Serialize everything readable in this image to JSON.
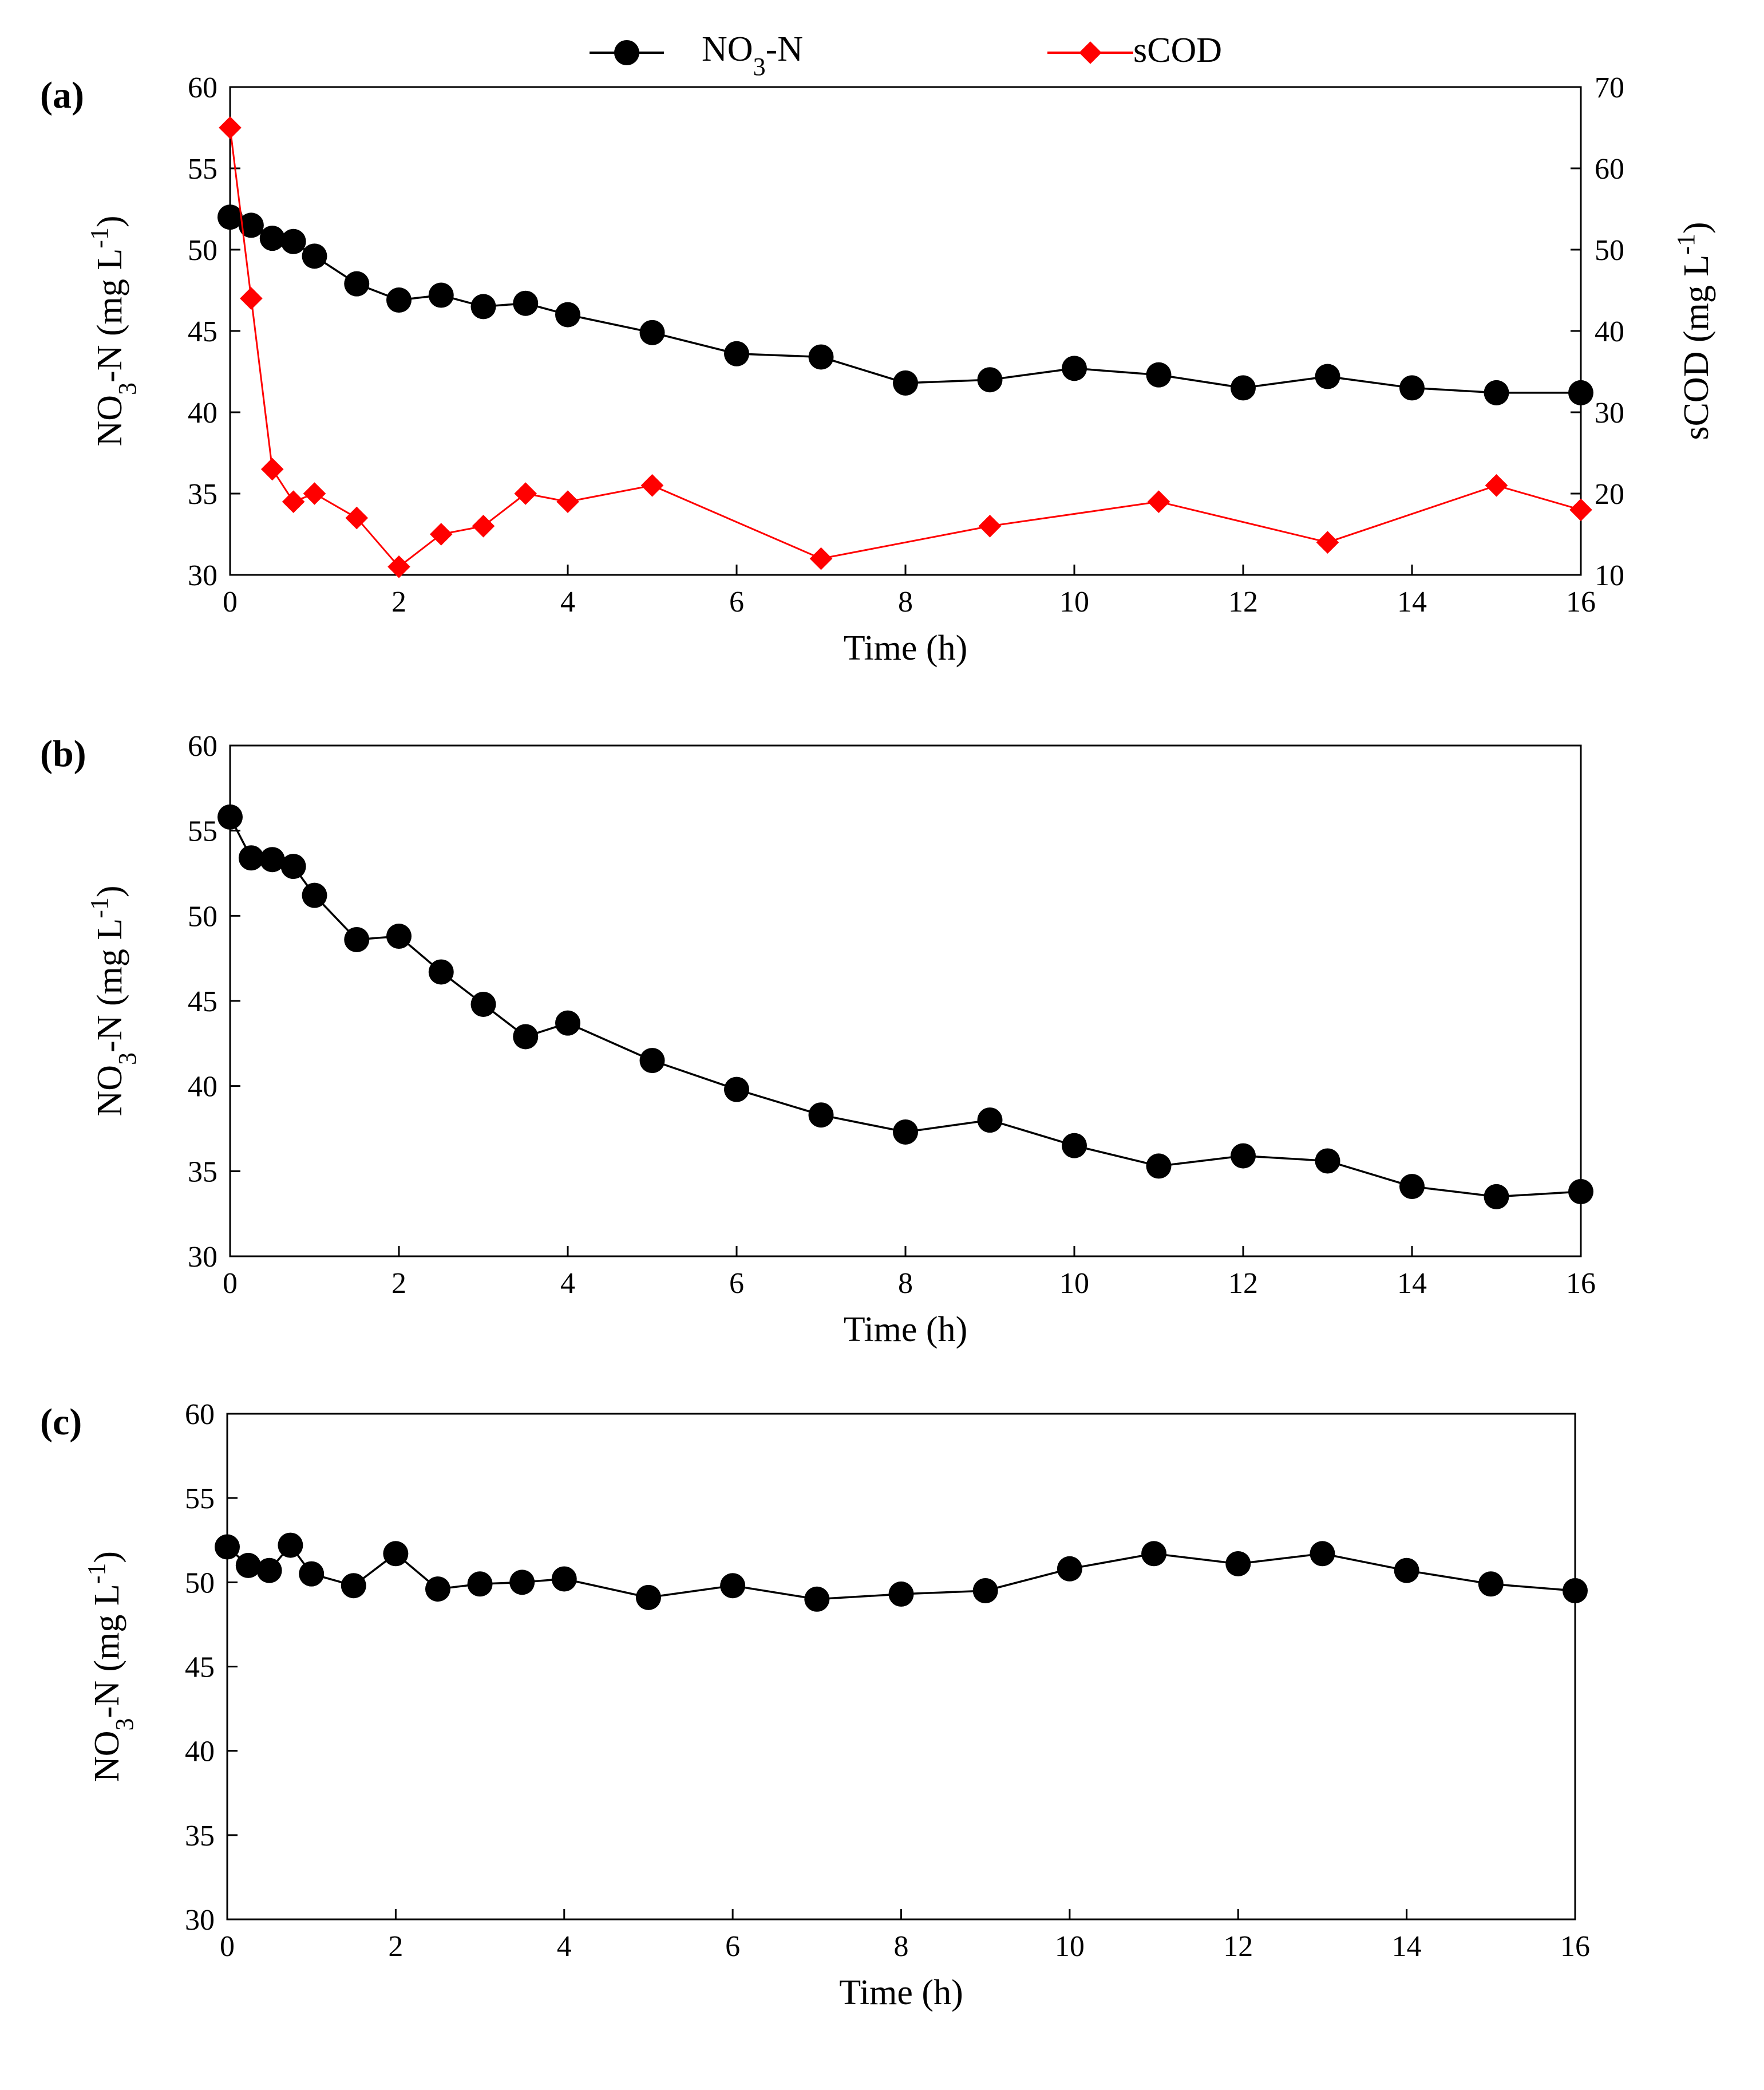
{
  "legend": {
    "series1_label": "NO3-N",
    "series2_label": "sCOD"
  },
  "colors": {
    "series1": "#000000",
    "series2": "#ff0000",
    "axis": "#000000"
  },
  "chart_data": [
    {
      "type": "line",
      "panel_label": "(a)",
      "xlabel": "Time (h)",
      "ylabel": "NO3-N (mg L-1)",
      "y2label": "sCOD (mg L-1)",
      "xlim": [
        0,
        16
      ],
      "ylim": [
        30,
        60
      ],
      "y2lim": [
        10,
        70
      ],
      "xticks": [
        0,
        2,
        4,
        6,
        8,
        10,
        12,
        14,
        16
      ],
      "yticks": [
        30,
        35,
        40,
        45,
        50,
        55,
        60
      ],
      "y2ticks": [
        10,
        20,
        30,
        40,
        50,
        60,
        70
      ],
      "grid": false,
      "series": [
        {
          "name": "NO3-N",
          "axis": "left",
          "marker": "circle",
          "x": [
            0,
            0.25,
            0.5,
            0.75,
            1,
            1.5,
            2,
            2.5,
            3,
            3.5,
            4,
            5,
            6,
            7,
            8,
            9,
            10,
            11,
            12,
            13,
            14,
            15,
            16
          ],
          "y": [
            52.0,
            51.5,
            50.7,
            50.5,
            49.6,
            47.9,
            46.9,
            47.2,
            46.5,
            46.7,
            46.0,
            44.9,
            43.6,
            43.4,
            41.8,
            42.0,
            42.7,
            42.3,
            41.5,
            42.2,
            41.5,
            41.2,
            41.2
          ]
        },
        {
          "name": "sCOD",
          "axis": "right",
          "marker": "diamond",
          "x": [
            0,
            0.25,
            0.5,
            0.75,
            1,
            1.5,
            2,
            2.5,
            3,
            3.5,
            4,
            5,
            7,
            9,
            11,
            13,
            15,
            16
          ],
          "y": [
            65,
            44,
            23,
            19,
            20,
            17,
            11,
            15,
            16,
            20,
            19,
            21,
            12,
            16,
            19,
            14,
            21,
            18
          ]
        }
      ]
    },
    {
      "type": "line",
      "panel_label": "(b)",
      "xlabel": "Time (h)",
      "ylabel": "NO3-N (mg L-1)",
      "xlim": [
        0,
        16
      ],
      "ylim": [
        30,
        60
      ],
      "xticks": [
        0,
        2,
        4,
        6,
        8,
        10,
        12,
        14,
        16
      ],
      "yticks": [
        30,
        35,
        40,
        45,
        50,
        55,
        60
      ],
      "grid": false,
      "series": [
        {
          "name": "NO3-N",
          "axis": "left",
          "marker": "circle",
          "x": [
            0,
            0.25,
            0.5,
            0.75,
            1,
            1.5,
            2,
            2.5,
            3,
            3.5,
            4,
            5,
            6,
            7,
            8,
            9,
            10,
            11,
            12,
            13,
            14,
            15,
            16
          ],
          "y": [
            55.8,
            53.4,
            53.3,
            52.9,
            51.2,
            48.6,
            48.8,
            46.7,
            44.8,
            42.9,
            43.7,
            41.5,
            39.8,
            38.3,
            37.3,
            38.0,
            36.5,
            35.3,
            35.9,
            35.6,
            34.1,
            33.5,
            33.8
          ]
        }
      ]
    },
    {
      "type": "line",
      "panel_label": "(c)",
      "xlabel": "Time (h)",
      "ylabel": "NO3-N (mg L-1)",
      "xlim": [
        0,
        16
      ],
      "ylim": [
        30,
        60
      ],
      "xticks": [
        0,
        2,
        4,
        6,
        8,
        10,
        12,
        14,
        16
      ],
      "yticks": [
        30,
        35,
        40,
        45,
        50,
        55,
        60
      ],
      "grid": false,
      "series": [
        {
          "name": "NO3-N",
          "axis": "left",
          "marker": "circle",
          "x": [
            0,
            0.25,
            0.5,
            0.75,
            1,
            1.5,
            2,
            2.5,
            3,
            3.5,
            4,
            5,
            6,
            7,
            8,
            9,
            10,
            11,
            12,
            13,
            14,
            15,
            16
          ],
          "y": [
            52.1,
            51.0,
            50.7,
            52.2,
            50.5,
            49.8,
            51.7,
            49.6,
            49.9,
            50.0,
            50.2,
            49.1,
            49.8,
            49.0,
            49.3,
            49.5,
            50.8,
            51.7,
            51.1,
            51.7,
            50.7,
            49.9,
            49.5
          ]
        }
      ]
    }
  ]
}
